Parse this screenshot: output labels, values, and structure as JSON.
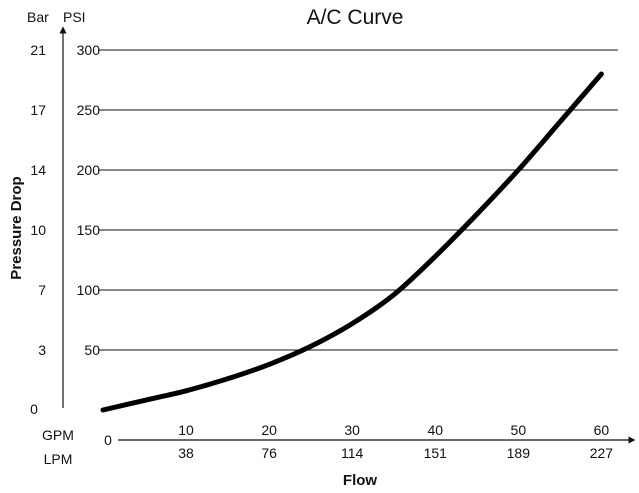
{
  "chart_data": {
    "type": "line",
    "title": "A/C Curve",
    "xlabel": "Flow",
    "ylabel": "Pressure Drop",
    "x_units": [
      "GPM",
      "LPM"
    ],
    "y_units": [
      "Bar",
      "PSI"
    ],
    "xlim": [
      0,
      62
    ],
    "ylim": [
      0,
      300
    ],
    "x_origin_label": "0",
    "x_ticks_gpm": [
      "10",
      "20",
      "30",
      "40",
      "50",
      "60"
    ],
    "x_ticks_gpm_values": [
      10,
      20,
      30,
      40,
      50,
      60
    ],
    "x_ticks_lpm": [
      "38",
      "76",
      "114",
      "151",
      "189",
      "227"
    ],
    "y_ticks_psi": [
      "50",
      "100",
      "150",
      "200",
      "250",
      "300"
    ],
    "y_ticks_psi_values": [
      50,
      100,
      150,
      200,
      250,
      300
    ],
    "y_ticks_bar": [
      "3",
      "7",
      "10",
      "14",
      "17",
      "21"
    ],
    "y_origin_label_bar": "0",
    "grid": "horizontal",
    "line_color": "#000000",
    "series": [
      {
        "x": [
          0,
          5,
          10,
          15,
          20,
          25,
          30,
          35,
          40,
          45,
          50,
          55,
          60
        ],
        "y": [
          0,
          8,
          16,
          26,
          38,
          53,
          72,
          96,
          128,
          163,
          200,
          240,
          280
        ]
      }
    ]
  }
}
